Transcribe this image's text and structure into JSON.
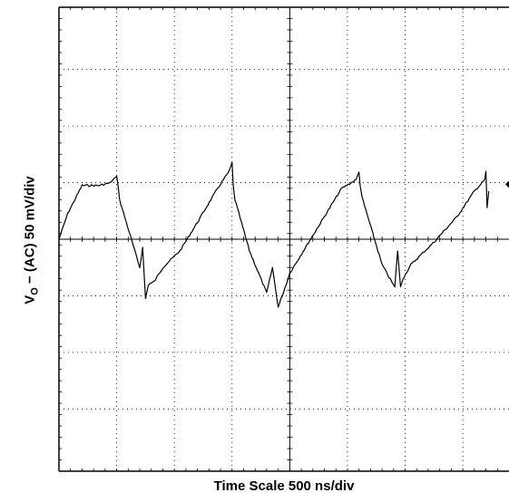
{
  "chart_data": {
    "type": "line",
    "xlabel": "Time Scale 500 ns/div",
    "ylabel_parts": {
      "main": "V",
      "subscript": "O",
      "rest": " − (AC) 50 mV/div"
    },
    "x_unit": "div",
    "y_unit": "div",
    "xlim": [
      0,
      7.8
    ],
    "ylim": [
      -4.1,
      4.1
    ],
    "grid": true,
    "marker_level": 0.97,
    "series": [
      {
        "x": [
          0,
          0.15,
          0.4,
          0.7,
          0.9,
          0.93,
          1.0,
          1.02,
          1.05,
          1.4,
          1.45,
          1.5,
          1.55,
          1.65,
          1.8,
          2.1,
          2.4,
          2.75,
          2.95,
          3.0,
          3.02,
          3.05,
          3.3,
          3.6,
          3.7,
          3.8,
          3.92,
          4.0,
          4.3,
          4.6,
          4.9,
          5.15,
          5.2,
          5.22,
          5.25,
          5.6,
          5.82,
          5.87,
          5.92,
          5.96,
          6.1,
          6.5,
          6.9,
          7.2,
          7.38,
          7.4,
          7.42,
          7.45
        ],
        "y": [
          0,
          0.45,
          0.95,
          0.95,
          1.0,
          1.05,
          1.1,
          1.0,
          0.7,
          -0.5,
          -0.15,
          -1.05,
          -0.8,
          -0.75,
          -0.5,
          -0.2,
          0.3,
          0.9,
          1.2,
          1.35,
          0.95,
          0.7,
          -0.2,
          -0.95,
          -0.5,
          -1.2,
          -0.85,
          -0.6,
          -0.1,
          0.4,
          0.9,
          1.05,
          1.2,
          0.95,
          0.75,
          -0.45,
          -0.85,
          -0.2,
          -0.85,
          -0.7,
          -0.45,
          -0.05,
          0.4,
          0.85,
          1.05,
          1.2,
          0.55,
          0.85
        ]
      }
    ]
  }
}
